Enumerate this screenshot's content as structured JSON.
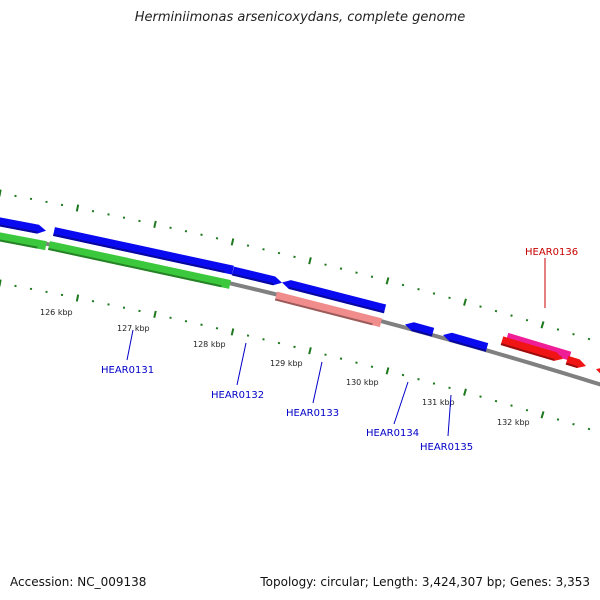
{
  "title": "Herminiimonas arsenicoxydans, complete genome",
  "footer": {
    "accession": "Accession: NC_009138",
    "topology": "Topology: circular; Length: 3,424,307 bp; Genes: 3,353"
  },
  "colors": {
    "backbone": "#808080",
    "blue": "#0a0af0",
    "green": "#3cc83c",
    "salmon": "#f08c8c",
    "pink": "#f01e96",
    "red": "#f01414",
    "label": "#0000c8",
    "highlight_label": "#c80000",
    "tick": "#1e781e",
    "kbp_text": "#222222"
  },
  "kbp_labels": [
    "126 kbp",
    "127 kbp",
    "128 kbp",
    "129 kbp",
    "130 kbp",
    "131 kbp",
    "132 kbp"
  ],
  "gene_labels": [
    {
      "text": "HEAR0131",
      "highlight": false
    },
    {
      "text": "HEAR0132",
      "highlight": false
    },
    {
      "text": "HEAR0133",
      "highlight": false
    },
    {
      "text": "HEAR0134",
      "highlight": false
    },
    {
      "text": "HEAR0135",
      "highlight": false
    },
    {
      "text": "HEAR0136",
      "highlight": true
    }
  ]
}
